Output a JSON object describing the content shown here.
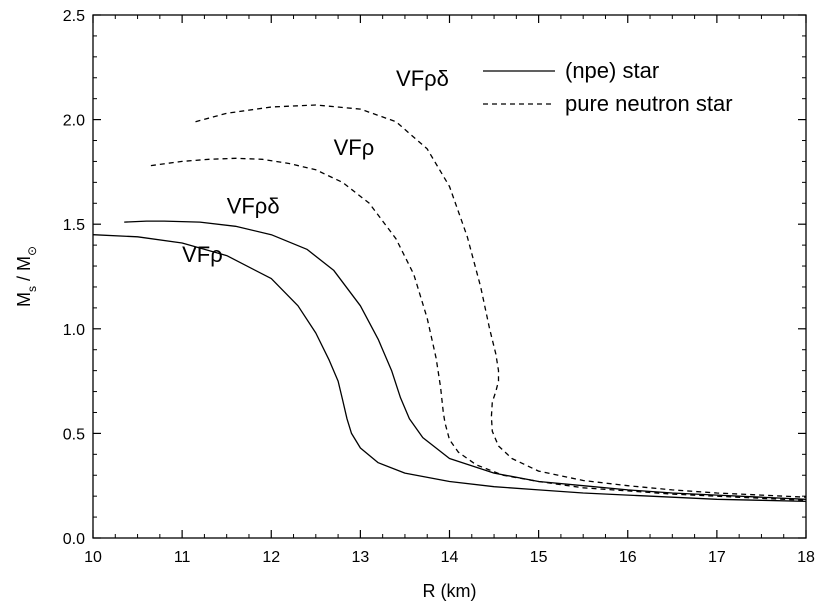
{
  "chart_data": {
    "type": "line",
    "xlabel": "R (km)",
    "ylabel": {
      "main": "M",
      "sub1": "s",
      "sep": " / M",
      "sub2": "⊙"
    },
    "xlim": [
      10,
      18
    ],
    "ylim": [
      0,
      2.5
    ],
    "xticks": [
      "10",
      "11",
      "12",
      "13",
      "14",
      "15",
      "16",
      "17",
      "18"
    ],
    "yticks": [
      "0.0",
      "0.5",
      "1.0",
      "1.5",
      "2.0",
      "2.5"
    ],
    "grid": false,
    "legend_position": "top-right",
    "legend": [
      {
        "label": "(npe) star",
        "style": "solid"
      },
      {
        "label": "pure neutron star",
        "style": "dashed"
      }
    ],
    "series": [
      {
        "model": "VFρ",
        "style": "solid",
        "x": [
          10.0,
          10.5,
          11.0,
          11.5,
          12.0,
          12.3,
          12.5,
          12.65,
          12.75,
          12.8,
          12.85,
          12.9,
          13.0,
          13.2,
          13.5,
          14.0,
          14.5,
          15.0,
          15.5,
          16.0,
          16.5,
          17.0,
          17.5,
          18.0
        ],
        "y": [
          1.45,
          1.44,
          1.41,
          1.35,
          1.24,
          1.11,
          0.98,
          0.85,
          0.75,
          0.66,
          0.57,
          0.5,
          0.43,
          0.36,
          0.31,
          0.27,
          0.245,
          0.23,
          0.215,
          0.205,
          0.195,
          0.185,
          0.18,
          0.175
        ]
      },
      {
        "model": "VFρδ",
        "style": "solid",
        "x": [
          10.35,
          10.6,
          10.8,
          11.2,
          11.6,
          12.0,
          12.4,
          12.7,
          13.0,
          13.2,
          13.35,
          13.45,
          13.55,
          13.7,
          14.0,
          14.5,
          15.0,
          15.5,
          16.0,
          16.5,
          17.0,
          17.5,
          18.0
        ],
        "y": [
          1.51,
          1.515,
          1.515,
          1.51,
          1.49,
          1.45,
          1.38,
          1.28,
          1.11,
          0.95,
          0.8,
          0.67,
          0.57,
          0.48,
          0.38,
          0.31,
          0.27,
          0.25,
          0.23,
          0.215,
          0.205,
          0.195,
          0.185
        ]
      },
      {
        "model": "VFρ",
        "style": "dashed",
        "x": [
          10.65,
          11.0,
          11.3,
          11.6,
          11.9,
          12.2,
          12.5,
          12.8,
          13.1,
          13.4,
          13.6,
          13.75,
          13.85,
          13.9,
          13.93,
          13.95,
          14.0,
          14.1,
          14.3,
          14.6,
          15.0,
          15.5,
          16.0,
          16.5,
          17.0,
          17.5,
          18.0
        ],
        "y": [
          1.78,
          1.8,
          1.81,
          1.815,
          1.81,
          1.79,
          1.76,
          1.7,
          1.6,
          1.43,
          1.26,
          1.05,
          0.86,
          0.72,
          0.6,
          0.55,
          0.47,
          0.41,
          0.35,
          0.3,
          0.27,
          0.24,
          0.225,
          0.21,
          0.2,
          0.19,
          0.18
        ]
      },
      {
        "model": "VFρδ",
        "style": "dashed",
        "x": [
          11.15,
          11.5,
          12.0,
          12.5,
          13.0,
          13.4,
          13.75,
          14.0,
          14.2,
          14.35,
          14.45,
          14.52,
          14.55,
          14.55,
          14.52,
          14.48,
          14.47,
          14.48,
          14.55,
          14.7,
          15.0,
          15.5,
          16.0,
          16.5,
          17.0,
          17.5,
          18.0
        ],
        "y": [
          1.99,
          2.03,
          2.06,
          2.07,
          2.05,
          1.99,
          1.86,
          1.68,
          1.44,
          1.2,
          1.0,
          0.88,
          0.8,
          0.75,
          0.7,
          0.65,
          0.58,
          0.51,
          0.44,
          0.38,
          0.32,
          0.275,
          0.25,
          0.23,
          0.215,
          0.205,
          0.195
        ]
      }
    ],
    "annotations": [
      {
        "text": "VFρδ",
        "x": 13.4,
        "y": 2.16
      },
      {
        "text": "VFρ",
        "x": 12.7,
        "y": 1.83
      },
      {
        "text": "VFρδ",
        "x": 11.5,
        "y": 1.55
      },
      {
        "text": "VFρ",
        "x": 11.0,
        "y": 1.32
      }
    ]
  }
}
